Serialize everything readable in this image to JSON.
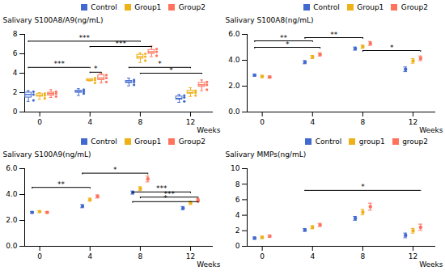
{
  "chart_data": [
    {
      "type": "box",
      "xlabel": "Weeks",
      "ylabel": "Salivary S100A8/A9(ng/mL)",
      "x": [
        0,
        4,
        8,
        12
      ],
      "xlim": [
        -1.2,
        13.8
      ],
      "xticks": [
        0,
        4,
        8,
        12
      ],
      "ylim": [
        0,
        8
      ],
      "yticks": [
        0,
        2,
        4,
        6,
        8
      ],
      "grid": false,
      "legend": "upper right",
      "series": [
        {
          "name": "Control",
          "boxes": [
            {
              "whisker_low": 1.1,
              "q1": 1.5,
              "median": 1.8,
              "q3": 2.0,
              "whisker_high": 2.2
            },
            {
              "whisker_low": 1.7,
              "q1": 2.0,
              "median": 2.1,
              "q3": 2.2,
              "whisker_high": 2.4
            },
            {
              "whisker_low": 2.7,
              "q1": 3.0,
              "median": 3.1,
              "q3": 3.2,
              "whisker_high": 3.5
            },
            {
              "whisker_low": 1.0,
              "q1": 1.3,
              "median": 1.4,
              "q3": 1.6,
              "whisker_high": 1.8
            }
          ],
          "points": [
            [
              1.2,
              1.8,
              2.1
            ],
            [
              1.9,
              2.1,
              2.3
            ],
            [
              2.8,
              3.1,
              3.3
            ],
            [
              1.1,
              1.5,
              1.7
            ]
          ]
        },
        {
          "name": "Group1",
          "boxes": [
            {
              "whisker_low": 1.3,
              "q1": 1.6,
              "median": 1.7,
              "q3": 1.85,
              "whisker_high": 2.0
            },
            {
              "whisker_low": 3.2,
              "q1": 3.2,
              "median": 3.3,
              "q3": 3.4,
              "whisker_high": 3.4
            },
            {
              "whisker_low": 5.1,
              "q1": 5.5,
              "median": 5.7,
              "q3": 5.9,
              "whisker_high": 6.1
            },
            {
              "whisker_low": 1.6,
              "q1": 1.9,
              "median": 2.0,
              "q3": 2.2,
              "whisker_high": 2.5
            }
          ],
          "points": [
            [
              1.4,
              1.7,
              1.9
            ],
            [
              3.0,
              3.3,
              3.5
            ],
            [
              5.3,
              5.7,
              6.0
            ],
            [
              1.7,
              2.0,
              2.2
            ]
          ]
        },
        {
          "name": "Group2",
          "boxes": [
            {
              "whisker_low": 1.5,
              "q1": 1.7,
              "median": 1.9,
              "q3": 2.0,
              "whisker_high": 2.3
            },
            {
              "whisker_low": 3.0,
              "q1": 3.3,
              "median": 3.5,
              "q3": 3.8,
              "whisker_high": 4.0
            },
            {
              "whisker_low": 5.7,
              "q1": 6.0,
              "median": 6.2,
              "q3": 6.4,
              "whisker_high": 6.8
            },
            {
              "whisker_low": 2.2,
              "q1": 2.6,
              "median": 2.8,
              "q3": 3.0,
              "whisker_high": 3.3
            }
          ],
          "points": [
            [
              1.6,
              1.9,
              2.1
            ],
            [
              3.1,
              3.5,
              3.8
            ],
            [
              5.8,
              6.2,
              6.5
            ],
            [
              2.3,
              2.8,
              3.1
            ]
          ]
        }
      ],
      "significance": [
        {
          "x1": 0,
          "series1": "Control",
          "x2": 4,
          "series2": "Group1",
          "y": 4.6,
          "label": "***"
        },
        {
          "x1": 4,
          "series1": "Group1",
          "x2": 4,
          "series2": "Group2",
          "y": 4.1,
          "label": "*"
        },
        {
          "x1": 0,
          "series1": "Control",
          "x2": 8,
          "series2": "Group1",
          "y": 7.3,
          "label": "***"
        },
        {
          "x1": 4,
          "series1": "Group1",
          "x2": 8,
          "series2": "Group2",
          "y": 6.75,
          "label": "***"
        },
        {
          "x1": 8,
          "series1": "Control",
          "x2": 12,
          "series2": "Group1",
          "y": 4.6,
          "label": "*"
        },
        {
          "x1": 8,
          "series1": "Group1",
          "x2": 12,
          "series2": "Group2",
          "y": 4.0,
          "label": "*"
        }
      ]
    },
    {
      "type": "scatter",
      "xlabel": "Weeks",
      "ylabel": "Salivary S100A8(ng/mL)",
      "x": [
        0,
        4,
        8,
        12
      ],
      "xlim": [
        -1.2,
        13.8
      ],
      "xticks": [
        0,
        4,
        8,
        12
      ],
      "ylim": [
        0,
        6
      ],
      "yticks": [
        0,
        2,
        4,
        6
      ],
      "grid": false,
      "legend": "upper right",
      "series": [
        {
          "name": "Control",
          "values": [
            2.85,
            3.85,
            4.9,
            3.3
          ],
          "errors": [
            0.08,
            0.12,
            0.12,
            0.18
          ]
        },
        {
          "name": "Group1",
          "values": [
            2.75,
            4.25,
            5.05,
            3.95
          ],
          "errors": [
            0.08,
            0.12,
            0.12,
            0.18
          ]
        },
        {
          "name": "Group2",
          "values": [
            2.7,
            4.45,
            5.3,
            4.15
          ],
          "errors": [
            0.08,
            0.12,
            0.15,
            0.18
          ]
        }
      ],
      "significance": [
        {
          "x1": 0,
          "series1": "Control",
          "x2": 4,
          "series2": "Group1",
          "y": 5.5,
          "label": "**"
        },
        {
          "x1": 0,
          "series1": "Control",
          "x2": 4,
          "series2": "Group2",
          "y": 5.0,
          "label": "*"
        },
        {
          "x1": 4,
          "series1": "Control",
          "x2": 8,
          "series2": "Group1",
          "y": 5.75,
          "label": "**"
        },
        {
          "x1": 8,
          "series1": "Group1",
          "x2": 12,
          "series2": "Group2",
          "y": 4.75,
          "label": "*"
        }
      ]
    },
    {
      "type": "scatter",
      "xlabel": "Weeks",
      "ylabel": "Salivary S100A9(ng/mL)",
      "x": [
        0,
        4,
        8,
        12
      ],
      "xlim": [
        -1.2,
        13.8
      ],
      "xticks": [
        0,
        4,
        8,
        12
      ],
      "ylim": [
        0,
        6
      ],
      "yticks": [
        0,
        2,
        4,
        6
      ],
      "grid": false,
      "legend": "upper right",
      "series": [
        {
          "name": "Control",
          "values": [
            2.62,
            3.1,
            4.15,
            2.95
          ],
          "errors": [
            0.07,
            0.12,
            0.12,
            0.12
          ]
        },
        {
          "name": "Group1",
          "values": [
            2.68,
            3.6,
            4.45,
            3.35
          ],
          "errors": [
            0.07,
            0.12,
            0.15,
            0.12
          ]
        },
        {
          "name": "Group2",
          "values": [
            2.62,
            3.85,
            5.2,
            3.55
          ],
          "errors": [
            0.07,
            0.12,
            0.22,
            0.12
          ]
        }
      ],
      "significance": [
        {
          "x1": 0,
          "series1": "Control",
          "x2": 4,
          "series2": "Group1",
          "y": 4.55,
          "label": "**"
        },
        {
          "x1": 4,
          "series1": "Control",
          "x2": 8,
          "series2": "Group2",
          "y": 5.65,
          "label": "*"
        },
        {
          "x1": 8,
          "series1": "Control",
          "x2": 12,
          "series2": "Group1",
          "y": 4.2,
          "label": "***"
        },
        {
          "x1": 8,
          "series1": "Group1",
          "x2": 12,
          "series2": "Group2",
          "y": 3.8,
          "label": "***"
        },
        {
          "x1": 8,
          "series1": "Control",
          "x2": 12,
          "series2": "Group2",
          "y": 3.45,
          "label": "*"
        }
      ]
    },
    {
      "type": "scatter",
      "xlabel": "Weeks",
      "ylabel": "Salivary MMPs(ng/mL)",
      "x": [
        0,
        4,
        8,
        12
      ],
      "xlim": [
        -1.2,
        13.8
      ],
      "xticks": [
        0,
        4,
        8,
        12
      ],
      "ylim": [
        0,
        10
      ],
      "yticks": [
        0,
        2,
        4,
        6,
        8,
        10
      ],
      "grid": false,
      "legend": "upper right",
      "series": [
        {
          "name": "Control",
          "values": [
            1.05,
            2.1,
            3.6,
            1.4
          ],
          "errors": [
            0.15,
            0.18,
            0.25,
            0.3
          ]
        },
        {
          "name": "group1",
          "values": [
            1.15,
            2.45,
            4.4,
            2.0
          ],
          "errors": [
            0.15,
            0.2,
            0.35,
            0.3
          ]
        },
        {
          "name": "group2",
          "values": [
            1.3,
            2.75,
            5.1,
            2.45
          ],
          "errors": [
            0.15,
            0.2,
            0.45,
            0.4
          ]
        }
      ],
      "significance": [
        {
          "x1": 4,
          "series1": "Control",
          "x2": 12,
          "series2": "group2",
          "y": 7.2,
          "label": "*"
        }
      ]
    }
  ]
}
